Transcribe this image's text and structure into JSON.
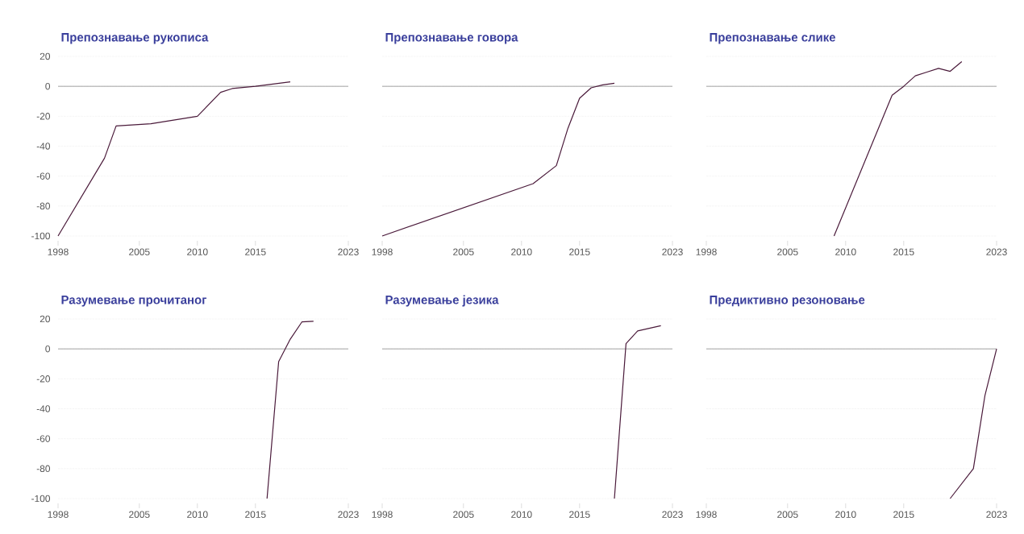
{
  "chart_data": [
    {
      "type": "line",
      "title": "Препознавање рукописа",
      "x": [
        1998,
        2002,
        2003,
        2006,
        2008,
        2010,
        2012,
        2013,
        2015,
        2018
      ],
      "values": [
        -100,
        -48,
        -26.5,
        -25,
        -22.5,
        -20,
        -4,
        -1.5,
        0,
        3
      ],
      "color": "#4a1a3a",
      "xlim": [
        1998,
        2023
      ],
      "ylim": [
        -100,
        20
      ],
      "xticks": [
        1998,
        2005,
        2010,
        2015,
        2023
      ],
      "yticks": [
        -100,
        -80,
        -60,
        -40,
        -20,
        0,
        20
      ],
      "grid": "y",
      "ref_lines": [
        {
          "axis": "y",
          "value": 0,
          "color": "#999999"
        }
      ]
    },
    {
      "type": "line",
      "title": "Препознавање говора",
      "x": [
        1998,
        2011,
        2013,
        2014,
        2015,
        2016,
        2017,
        2018
      ],
      "values": [
        -100,
        -65,
        -53,
        -28,
        -8,
        -1,
        1,
        2
      ],
      "color": "#4a1a3a",
      "xlim": [
        1998,
        2023
      ],
      "ylim": [
        -100,
        20
      ],
      "xticks": [
        1998,
        2005,
        2010,
        2015,
        2023
      ],
      "yticks": [
        -100,
        -80,
        -60,
        -40,
        -20,
        0,
        20
      ],
      "grid": "y",
      "tick_labels": "x",
      "ref_lines": [
        {
          "axis": "y",
          "value": 0,
          "color": "#999999"
        }
      ]
    },
    {
      "type": "line",
      "title": "Препознавање слике",
      "x": [
        2009,
        2014,
        2015,
        2016,
        2017,
        2018,
        2019,
        2020
      ],
      "values": [
        -100,
        -6,
        0,
        7,
        9.5,
        12,
        10,
        16.5
      ],
      "color": "#4a1a3a",
      "xlim": [
        1998,
        2023
      ],
      "ylim": [
        -100,
        20
      ],
      "xticks": [
        1998,
        2005,
        2010,
        2015,
        2023
      ],
      "yticks": [
        -100,
        -80,
        -60,
        -40,
        -20,
        0,
        20
      ],
      "grid": "y",
      "tick_labels": "x",
      "ref_lines": [
        {
          "axis": "y",
          "value": 0,
          "color": "#999999"
        }
      ]
    },
    {
      "type": "line",
      "title": "Разумевање прочитаног",
      "x": [
        2016,
        2017,
        2018,
        2019,
        2020
      ],
      "values": [
        -100,
        -8.5,
        6.5,
        18,
        18.5
      ],
      "color": "#4a1a3a",
      "xlim": [
        1998,
        2023
      ],
      "ylim": [
        -100,
        20
      ],
      "xticks": [
        1998,
        2005,
        2010,
        2015,
        2023
      ],
      "yticks": [
        -100,
        -80,
        -60,
        -40,
        -20,
        0,
        20
      ],
      "grid": "y",
      "ref_lines": [
        {
          "axis": "y",
          "value": 0,
          "color": "#999999"
        }
      ]
    },
    {
      "type": "line",
      "title": "Разумевање језика",
      "x": [
        2018,
        2019,
        2020,
        2022
      ],
      "values": [
        -100,
        3.5,
        12,
        15.5
      ],
      "color": "#4a1a3a",
      "xlim": [
        1998,
        2023
      ],
      "ylim": [
        -100,
        20
      ],
      "xticks": [
        1998,
        2005,
        2010,
        2015,
        2023
      ],
      "yticks": [
        -100,
        -80,
        -60,
        -40,
        -20,
        0,
        20
      ],
      "grid": "y",
      "tick_labels": "x",
      "ref_lines": [
        {
          "axis": "y",
          "value": 0,
          "color": "#999999"
        }
      ]
    },
    {
      "type": "line",
      "title": "Предиктивно резоновање",
      "x": [
        2019,
        2021,
        2022,
        2023
      ],
      "values": [
        -100,
        -80,
        -31,
        0
      ],
      "color": "#4a1a3a",
      "xlim": [
        1998,
        2023
      ],
      "ylim": [
        -100,
        20
      ],
      "xticks": [
        1998,
        2005,
        2010,
        2015,
        2023
      ],
      "yticks": [
        -100,
        -80,
        -60,
        -40,
        -20,
        0,
        20
      ],
      "grid": "y",
      "tick_labels": "x",
      "ref_lines": [
        {
          "axis": "y",
          "value": 0,
          "color": "#999999"
        }
      ]
    }
  ]
}
